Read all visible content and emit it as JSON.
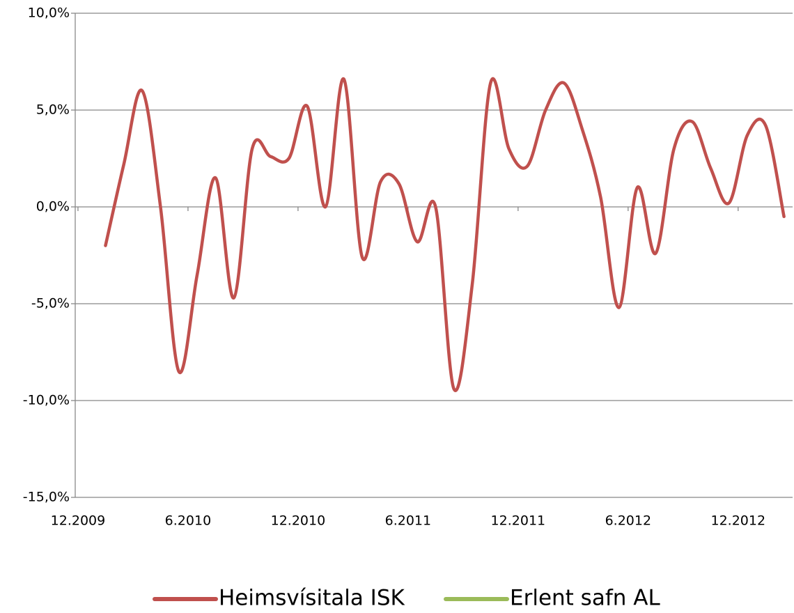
{
  "chart_data": {
    "type": "line",
    "x": [
      1.5,
      2.5,
      3.5,
      4.5,
      5.5,
      6.5,
      7.5,
      8.5,
      9.5,
      10.5,
      11.5,
      12.5,
      13.5,
      14.5,
      15.5,
      16.5,
      17.5,
      18.5,
      19.5,
      20.5,
      21.5,
      22.5,
      23.5,
      24.5,
      25.5,
      26.5,
      27.5,
      28.5,
      29.5,
      30.5,
      31.5,
      32.5,
      33.5,
      34.5,
      35.5,
      36.5,
      37.5,
      38.5
    ],
    "series": [
      {
        "name": "Heimsvísitala ISK",
        "color": "#c0504d",
        "values": [
          -2.0,
          2.2,
          6.0,
          0.0,
          -8.5,
          -3.5,
          1.5,
          -4.7,
          3.0,
          2.6,
          2.5,
          5.2,
          0.0,
          6.6,
          -2.6,
          1.3,
          1.2,
          -1.8,
          0.0,
          -9.4,
          -4.0,
          6.4,
          3.0,
          2.1,
          5.0,
          6.4,
          4.0,
          0.5,
          -5.2,
          1.0,
          -2.4,
          3.0,
          4.4,
          2.0,
          0.2,
          3.7,
          4.2,
          -0.5
        ]
      },
      {
        "name": "Erlent safn AL",
        "color": "#9bbb59",
        "values": [
          null,
          null,
          null,
          null,
          null,
          null,
          null,
          null,
          null,
          null,
          null,
          null,
          null,
          null,
          null,
          null,
          null,
          null,
          null,
          null,
          null,
          null,
          null,
          null,
          null,
          null,
          null,
          null,
          null,
          null,
          null,
          null,
          null,
          null,
          null,
          null,
          null,
          null
        ]
      }
    ],
    "xlim": [
      -0.15,
      38.97
    ],
    "xticks": [
      {
        "value": 0,
        "label": "12.2009"
      },
      {
        "value": 6,
        "label": "6.2010"
      },
      {
        "value": 12,
        "label": "12.2010"
      },
      {
        "value": 18,
        "label": "6.2011"
      },
      {
        "value": 24,
        "label": "12.2011"
      },
      {
        "value": 30,
        "label": "6.2012"
      },
      {
        "value": 36,
        "label": "12.2012"
      }
    ],
    "ylim": [
      -15,
      10
    ],
    "yticks": [
      {
        "value": -15,
        "label": "-15,0%"
      },
      {
        "value": -10,
        "label": "-10,0%"
      },
      {
        "value": -5,
        "label": "-5,0%"
      },
      {
        "value": 0,
        "label": "0,0%"
      },
      {
        "value": 5,
        "label": "5,0%"
      },
      {
        "value": 10,
        "label": "10,0%"
      }
    ],
    "grid": true,
    "legend": "bottom"
  }
}
